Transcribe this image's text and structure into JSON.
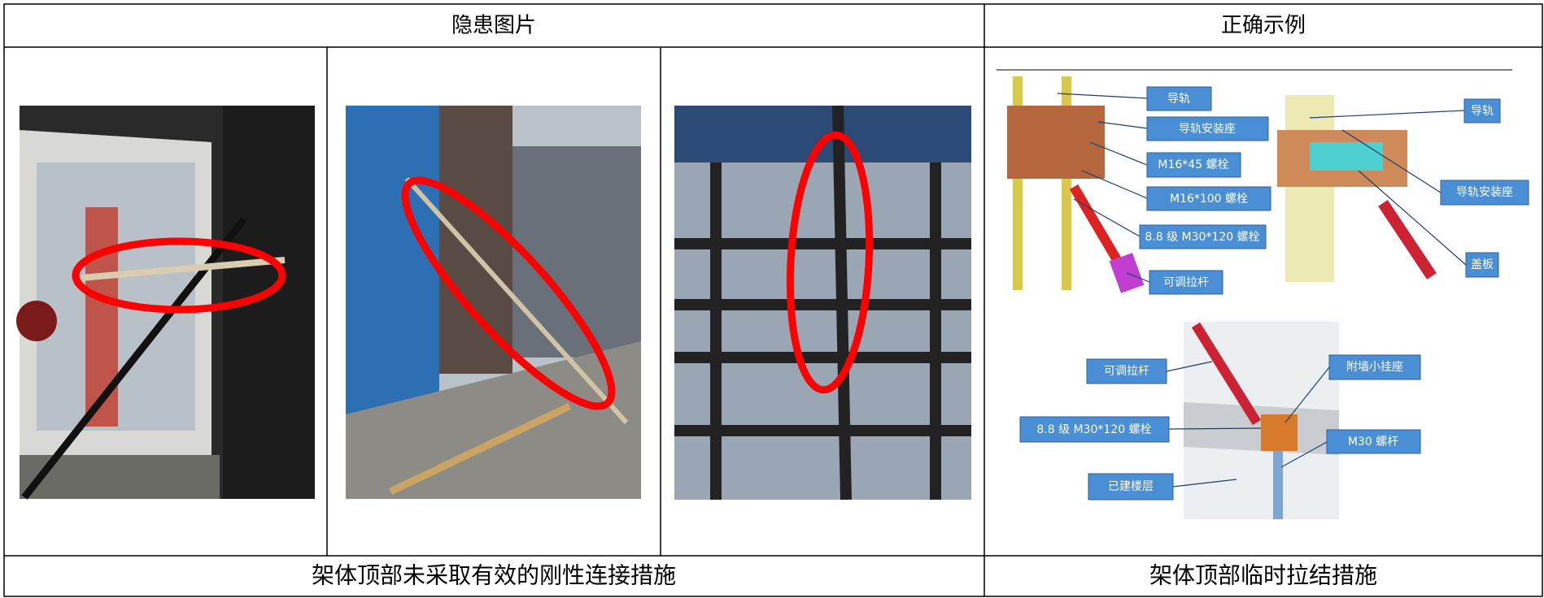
{
  "table": {
    "headers": [
      "隐患图片",
      "正确示例"
    ],
    "captions": [
      "架体顶部未采取有效的刚性连接措施",
      "架体顶部临时拉结措施"
    ],
    "diagram_labels": [
      "导轨",
      "导轨安装座",
      "M16*45 螺栓",
      "M16*100 螺栓",
      "8.8 级 M30*120 螺栓",
      "可调拉杆",
      "导轨",
      "导轨安装座",
      "盖板",
      "可调拉杆",
      "附墙小挂座",
      "8.8 级 M30*120 螺栓",
      "M30 螺杆",
      "已建楼层"
    ]
  }
}
